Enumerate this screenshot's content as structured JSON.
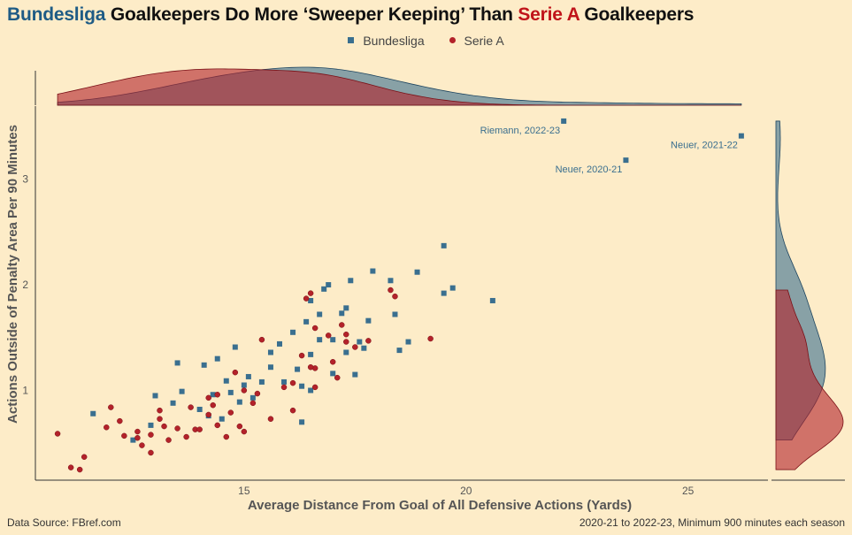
{
  "title": {
    "part1": "Bundesliga",
    "part2": " Goalkeepers Do More ‘Sweeper Keeping’ Than ",
    "part3": "Serie A",
    "part4": " Goalkeepers"
  },
  "legend": {
    "bundesliga": "Bundesliga",
    "seriea": "Serie A"
  },
  "footer": {
    "source": "Data Source: FBref.com",
    "note": "2020-21 to 2022-23, Minimum 900 minutes each season"
  },
  "colors": {
    "bundesliga": "#3a6f8f",
    "seriea": "#b3222a",
    "background": "#fdecc8"
  },
  "chart_data": {
    "type": "scatter",
    "xlabel": "Average Distance From Goal of All Defensive Actions (Yards)",
    "ylabel": "Actions Outside of Penalty Area Per 90 Minutes",
    "xlim": [
      10.3,
      26.8
    ],
    "ylim": [
      0.15,
      3.65
    ],
    "xticks": [
      15,
      20,
      25
    ],
    "yticks": [
      1,
      2,
      3
    ],
    "marginal_density": {
      "top": "x",
      "right": "y"
    },
    "annotations": [
      {
        "text": "Riemann, 2022-23",
        "x": 22.2,
        "y": 3.55
      },
      {
        "text": "Neuer, 2020-21",
        "x": 23.6,
        "y": 3.18
      },
      {
        "text": "Neuer, 2021-22",
        "x": 26.2,
        "y": 3.41
      }
    ],
    "series": [
      {
        "name": "Bundesliga",
        "marker": "square",
        "points": [
          [
            22.2,
            3.55
          ],
          [
            23.6,
            3.18
          ],
          [
            26.2,
            3.41
          ],
          [
            19.5,
            2.37
          ],
          [
            20.6,
            1.85
          ],
          [
            19.7,
            1.97
          ],
          [
            19.5,
            1.92
          ],
          [
            18.9,
            2.12
          ],
          [
            17.9,
            2.13
          ],
          [
            18.3,
            2.04
          ],
          [
            18.4,
            1.72
          ],
          [
            17.4,
            2.04
          ],
          [
            16.9,
            2.0
          ],
          [
            16.8,
            1.96
          ],
          [
            16.5,
            1.85
          ],
          [
            16.7,
            1.72
          ],
          [
            17.2,
            1.73
          ],
          [
            17.3,
            1.78
          ],
          [
            17.8,
            1.66
          ],
          [
            16.1,
            1.55
          ],
          [
            16.4,
            1.65
          ],
          [
            17.0,
            1.48
          ],
          [
            17.6,
            1.46
          ],
          [
            17.7,
            1.4
          ],
          [
            16.7,
            1.48
          ],
          [
            16.5,
            1.34
          ],
          [
            17.3,
            1.36
          ],
          [
            15.6,
            1.36
          ],
          [
            15.8,
            1.44
          ],
          [
            14.8,
            1.41
          ],
          [
            15.6,
            1.22
          ],
          [
            16.2,
            1.2
          ],
          [
            17.0,
            1.16
          ],
          [
            17.5,
            1.15
          ],
          [
            15.9,
            1.08
          ],
          [
            16.3,
            1.04
          ],
          [
            16.5,
            1.0
          ],
          [
            15.4,
            1.08
          ],
          [
            15.1,
            1.13
          ],
          [
            15.0,
            1.05
          ],
          [
            14.6,
            1.09
          ],
          [
            14.7,
            0.98
          ],
          [
            15.2,
            0.93
          ],
          [
            14.3,
            0.96
          ],
          [
            14.9,
            0.89
          ],
          [
            14.5,
            0.73
          ],
          [
            14.0,
            0.82
          ],
          [
            14.2,
            0.76
          ],
          [
            13.6,
            0.99
          ],
          [
            13.0,
            0.95
          ],
          [
            12.9,
            0.67
          ],
          [
            12.5,
            0.53
          ],
          [
            11.6,
            0.78
          ],
          [
            14.1,
            1.24
          ],
          [
            14.4,
            1.3
          ],
          [
            13.5,
            1.26
          ],
          [
            16.3,
            0.7
          ],
          [
            13.4,
            0.88
          ],
          [
            18.7,
            1.46
          ],
          [
            18.5,
            1.38
          ]
        ]
      },
      {
        "name": "Serie A",
        "marker": "circle",
        "points": [
          [
            10.8,
            0.59
          ],
          [
            11.1,
            0.27
          ],
          [
            11.3,
            0.25
          ],
          [
            11.4,
            0.37
          ],
          [
            11.9,
            0.65
          ],
          [
            12.2,
            0.71
          ],
          [
            12.3,
            0.57
          ],
          [
            12.6,
            0.55
          ],
          [
            12.7,
            0.48
          ],
          [
            12.9,
            0.58
          ],
          [
            12.9,
            0.41
          ],
          [
            13.1,
            0.73
          ],
          [
            13.2,
            0.66
          ],
          [
            13.5,
            0.64
          ],
          [
            13.3,
            0.53
          ],
          [
            13.7,
            0.56
          ],
          [
            13.9,
            0.63
          ],
          [
            14.2,
            0.77
          ],
          [
            14.3,
            0.86
          ],
          [
            14.4,
            0.67
          ],
          [
            14.7,
            0.79
          ],
          [
            14.9,
            0.66
          ],
          [
            15.0,
            0.61
          ],
          [
            14.6,
            0.56
          ],
          [
            14.0,
            0.63
          ],
          [
            13.8,
            0.84
          ],
          [
            14.2,
            0.93
          ],
          [
            15.0,
            1.0
          ],
          [
            15.3,
            0.97
          ],
          [
            15.2,
            0.88
          ],
          [
            15.6,
            0.73
          ],
          [
            15.9,
            1.03
          ],
          [
            16.1,
            1.07
          ],
          [
            16.6,
            1.03
          ],
          [
            16.1,
            0.81
          ],
          [
            16.3,
            1.33
          ],
          [
            16.6,
            1.21
          ],
          [
            17.0,
            1.27
          ],
          [
            17.3,
            1.46
          ],
          [
            17.5,
            1.41
          ],
          [
            17.1,
            1.12
          ],
          [
            16.5,
            1.22
          ],
          [
            16.9,
            1.52
          ],
          [
            16.4,
            1.87
          ],
          [
            16.5,
            1.92
          ],
          [
            17.2,
            1.62
          ],
          [
            17.3,
            1.53
          ],
          [
            17.8,
            1.47
          ],
          [
            16.6,
            1.59
          ],
          [
            18.3,
            1.95
          ],
          [
            18.4,
            1.89
          ],
          [
            19.2,
            1.49
          ],
          [
            15.4,
            1.48
          ],
          [
            14.8,
            1.17
          ],
          [
            12.6,
            0.61
          ],
          [
            13.1,
            0.81
          ],
          [
            14.4,
            0.96
          ],
          [
            12.0,
            0.84
          ]
        ]
      }
    ]
  }
}
